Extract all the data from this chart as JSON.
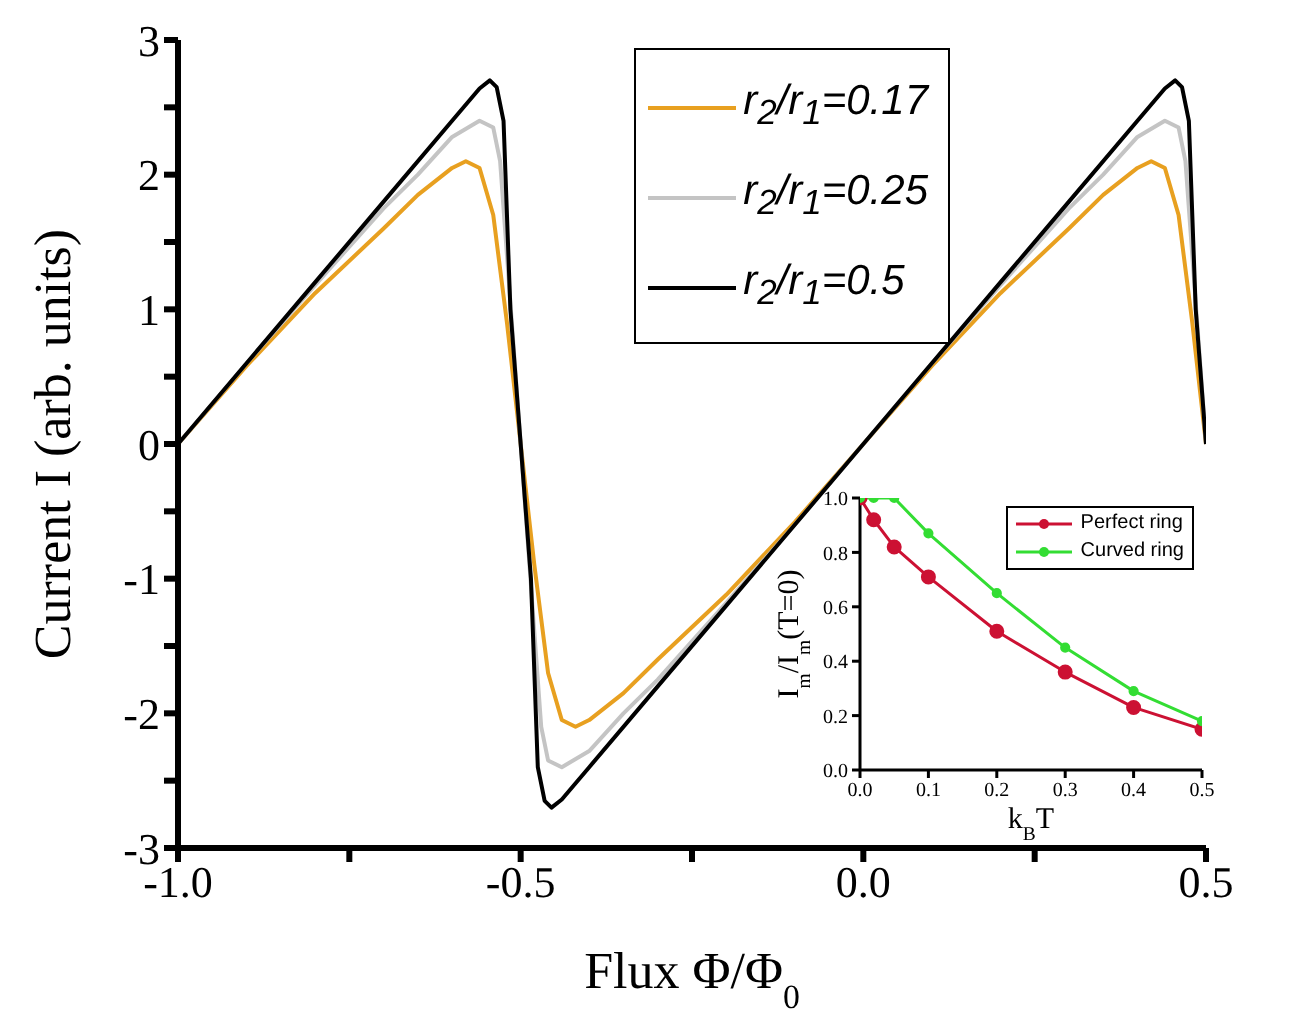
{
  "chart_data": [
    {
      "type": "line",
      "xlabel": "Flux Φ/Φ$_{0}$",
      "ylabel": "Current I (arb. units)",
      "xlim": [
        -1,
        0.5
      ],
      "xticks": [
        {
          "value": -1,
          "label": "-1.0"
        },
        {
          "value": -0.75,
          "label": null
        },
        {
          "value": -0.5,
          "label": "-0.5"
        },
        {
          "value": -0.25,
          "label": null
        },
        {
          "value": 0,
          "label": "0.0"
        },
        {
          "value": 0.25,
          "label": null
        },
        {
          "value": 0.5,
          "label": "0.5"
        }
      ],
      "ylim": [
        -3,
        3
      ],
      "yticks": [
        -3,
        {
          "value": -2.5,
          "label": null
        },
        -2,
        {
          "value": -1.5,
          "label": null
        },
        -1,
        {
          "value": -0.5,
          "label": null
        },
        0,
        {
          "value": 0.5,
          "label": null
        },
        1,
        {
          "value": 1.5,
          "label": null
        },
        2,
        {
          "value": 2.5,
          "label": null
        },
        3
      ],
      "legend": "top right",
      "series": [
        {
          "name": "r$_{2}$/r$_{1}$=0.17",
          "color": "#e8a020",
          "x": [
            -1,
            -0.9,
            -0.8,
            -0.7,
            -0.65,
            -0.6,
            -0.58,
            -0.56,
            -0.54,
            -0.52,
            -0.5,
            -0.48,
            -0.46,
            -0.44,
            -0.42,
            -0.4,
            -0.35,
            -0.3,
            -0.2,
            -0.1,
            0,
            0.1,
            0.2,
            0.3,
            0.35,
            0.4,
            0.42,
            0.44,
            0.46,
            0.48,
            0.5
          ],
          "values": [
            0,
            0.58,
            1.12,
            1.6,
            1.85,
            2.05,
            2.1,
            2.05,
            1.7,
            0.9,
            0,
            -0.9,
            -1.7,
            -2.05,
            -2.1,
            -2.05,
            -1.85,
            -1.6,
            -1.12,
            -0.58,
            0,
            0.58,
            1.12,
            1.6,
            1.85,
            2.05,
            2.1,
            2.05,
            1.7,
            0.9,
            0
          ]
        },
        {
          "name": "r$_{2}$/r$_{1}$=0.25",
          "color": "#c4c4c4",
          "x": [
            -1,
            -0.9,
            -0.8,
            -0.7,
            -0.65,
            -0.6,
            -0.56,
            -0.54,
            -0.53,
            -0.52,
            -0.51,
            -0.5,
            -0.49,
            -0.48,
            -0.47,
            -0.46,
            -0.44,
            -0.4,
            -0.35,
            -0.3,
            -0.2,
            -0.1,
            0,
            0.1,
            0.2,
            0.3,
            0.35,
            0.4,
            0.44,
            0.46,
            0.47,
            0.48,
            0.49,
            0.5
          ],
          "values": [
            0,
            0.6,
            1.18,
            1.75,
            2,
            2.28,
            2.4,
            2.35,
            2.1,
            1.4,
            0.7,
            0,
            -0.7,
            -1.4,
            -2.1,
            -2.35,
            -2.4,
            -2.28,
            -2,
            -1.75,
            -1.18,
            -0.6,
            0,
            0.6,
            1.18,
            1.75,
            2,
            2.28,
            2.4,
            2.35,
            2.1,
            1.4,
            0.7,
            0
          ]
        },
        {
          "name": "r$_{2}$/r$_{1}$=0.5",
          "color": "#000000",
          "x": [
            -1,
            -0.9,
            -0.8,
            -0.7,
            -0.6,
            -0.56,
            -0.545,
            -0.535,
            -0.525,
            -0.515,
            -0.5,
            -0.485,
            -0.475,
            -0.465,
            -0.455,
            -0.44,
            -0.4,
            -0.3,
            -0.2,
            -0.1,
            0,
            0.1,
            0.2,
            0.3,
            0.4,
            0.44,
            0.455,
            0.465,
            0.475,
            0.485,
            0.5
          ],
          "values": [
            0,
            0.6,
            1.2,
            1.8,
            2.4,
            2.64,
            2.7,
            2.65,
            2.4,
            1,
            0,
            -1,
            -2.4,
            -2.65,
            -2.7,
            -2.64,
            -2.4,
            -1.8,
            -1.2,
            -0.6,
            0,
            0.6,
            1.2,
            1.8,
            2.4,
            2.64,
            2.7,
            2.65,
            2.4,
            1,
            0
          ]
        }
      ]
    },
    {
      "type": "line",
      "xlabel": "k$_{B}$T",
      "ylabel": "I$_{m}$/I$_{m}$(T=0)",
      "xlim": [
        0,
        0.5
      ],
      "xticks": [
        {
          "value": 0,
          "label": "0.0"
        },
        0.1,
        0.2,
        0.3,
        0.4,
        0.5
      ],
      "ylim": [
        0,
        1
      ],
      "yticks": [
        {
          "value": 0,
          "label": "0.0"
        },
        0.2,
        0.4,
        0.6,
        0.8,
        {
          "value": 1,
          "label": "1.0"
        }
      ],
      "legend": "top right",
      "marker": "circle",
      "series": [
        {
          "name": "Perfect ring",
          "color": "#cc1133",
          "x": [
            0,
            0.02,
            0.05,
            0.1,
            0.2,
            0.3,
            0.4,
            0.5
          ],
          "values": [
            1,
            0.92,
            0.82,
            0.71,
            0.51,
            0.36,
            0.23,
            0.15
          ]
        },
        {
          "name": "Curved ring",
          "color": "#33dd33",
          "x": [
            0,
            0.02,
            0.05,
            0.1,
            0.2,
            0.3,
            0.4,
            0.5
          ],
          "values": [
            1,
            1,
            1,
            0.87,
            0.65,
            0.45,
            0.29,
            0.18
          ]
        }
      ]
    }
  ]
}
